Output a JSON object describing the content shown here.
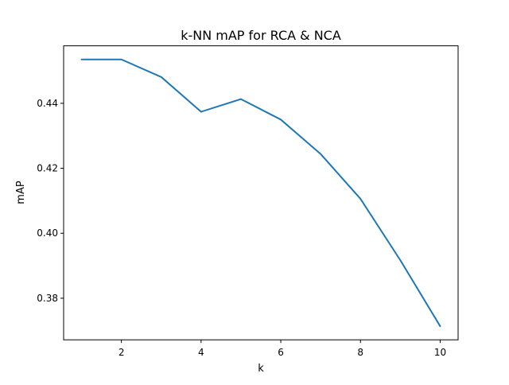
{
  "chart_data": {
    "type": "line",
    "title": "k-NN mAP for RCA & NCA",
    "xlabel": "k",
    "ylabel": "mAP",
    "xlim": [
      0.55,
      10.45
    ],
    "ylim": [
      0.3672,
      0.4577
    ],
    "x_ticks": [
      2,
      4,
      6,
      8,
      10
    ],
    "y_ticks": [
      0.38,
      0.4,
      0.42,
      0.44
    ],
    "x_tick_labels": [
      "2",
      "4",
      "6",
      "8",
      "10"
    ],
    "y_tick_labels": [
      "0.38",
      "0.40",
      "0.42",
      "0.44"
    ],
    "grid": false,
    "series": [
      {
        "color": "#1f77b4",
        "x": [
          1,
          2,
          3,
          4,
          5,
          6,
          7,
          8,
          9,
          10
        ],
        "y": [
          0.4535,
          0.4535,
          0.4481,
          0.4374,
          0.4413,
          0.435,
          0.4244,
          0.4106,
          0.3917,
          0.3714
        ]
      }
    ]
  }
}
